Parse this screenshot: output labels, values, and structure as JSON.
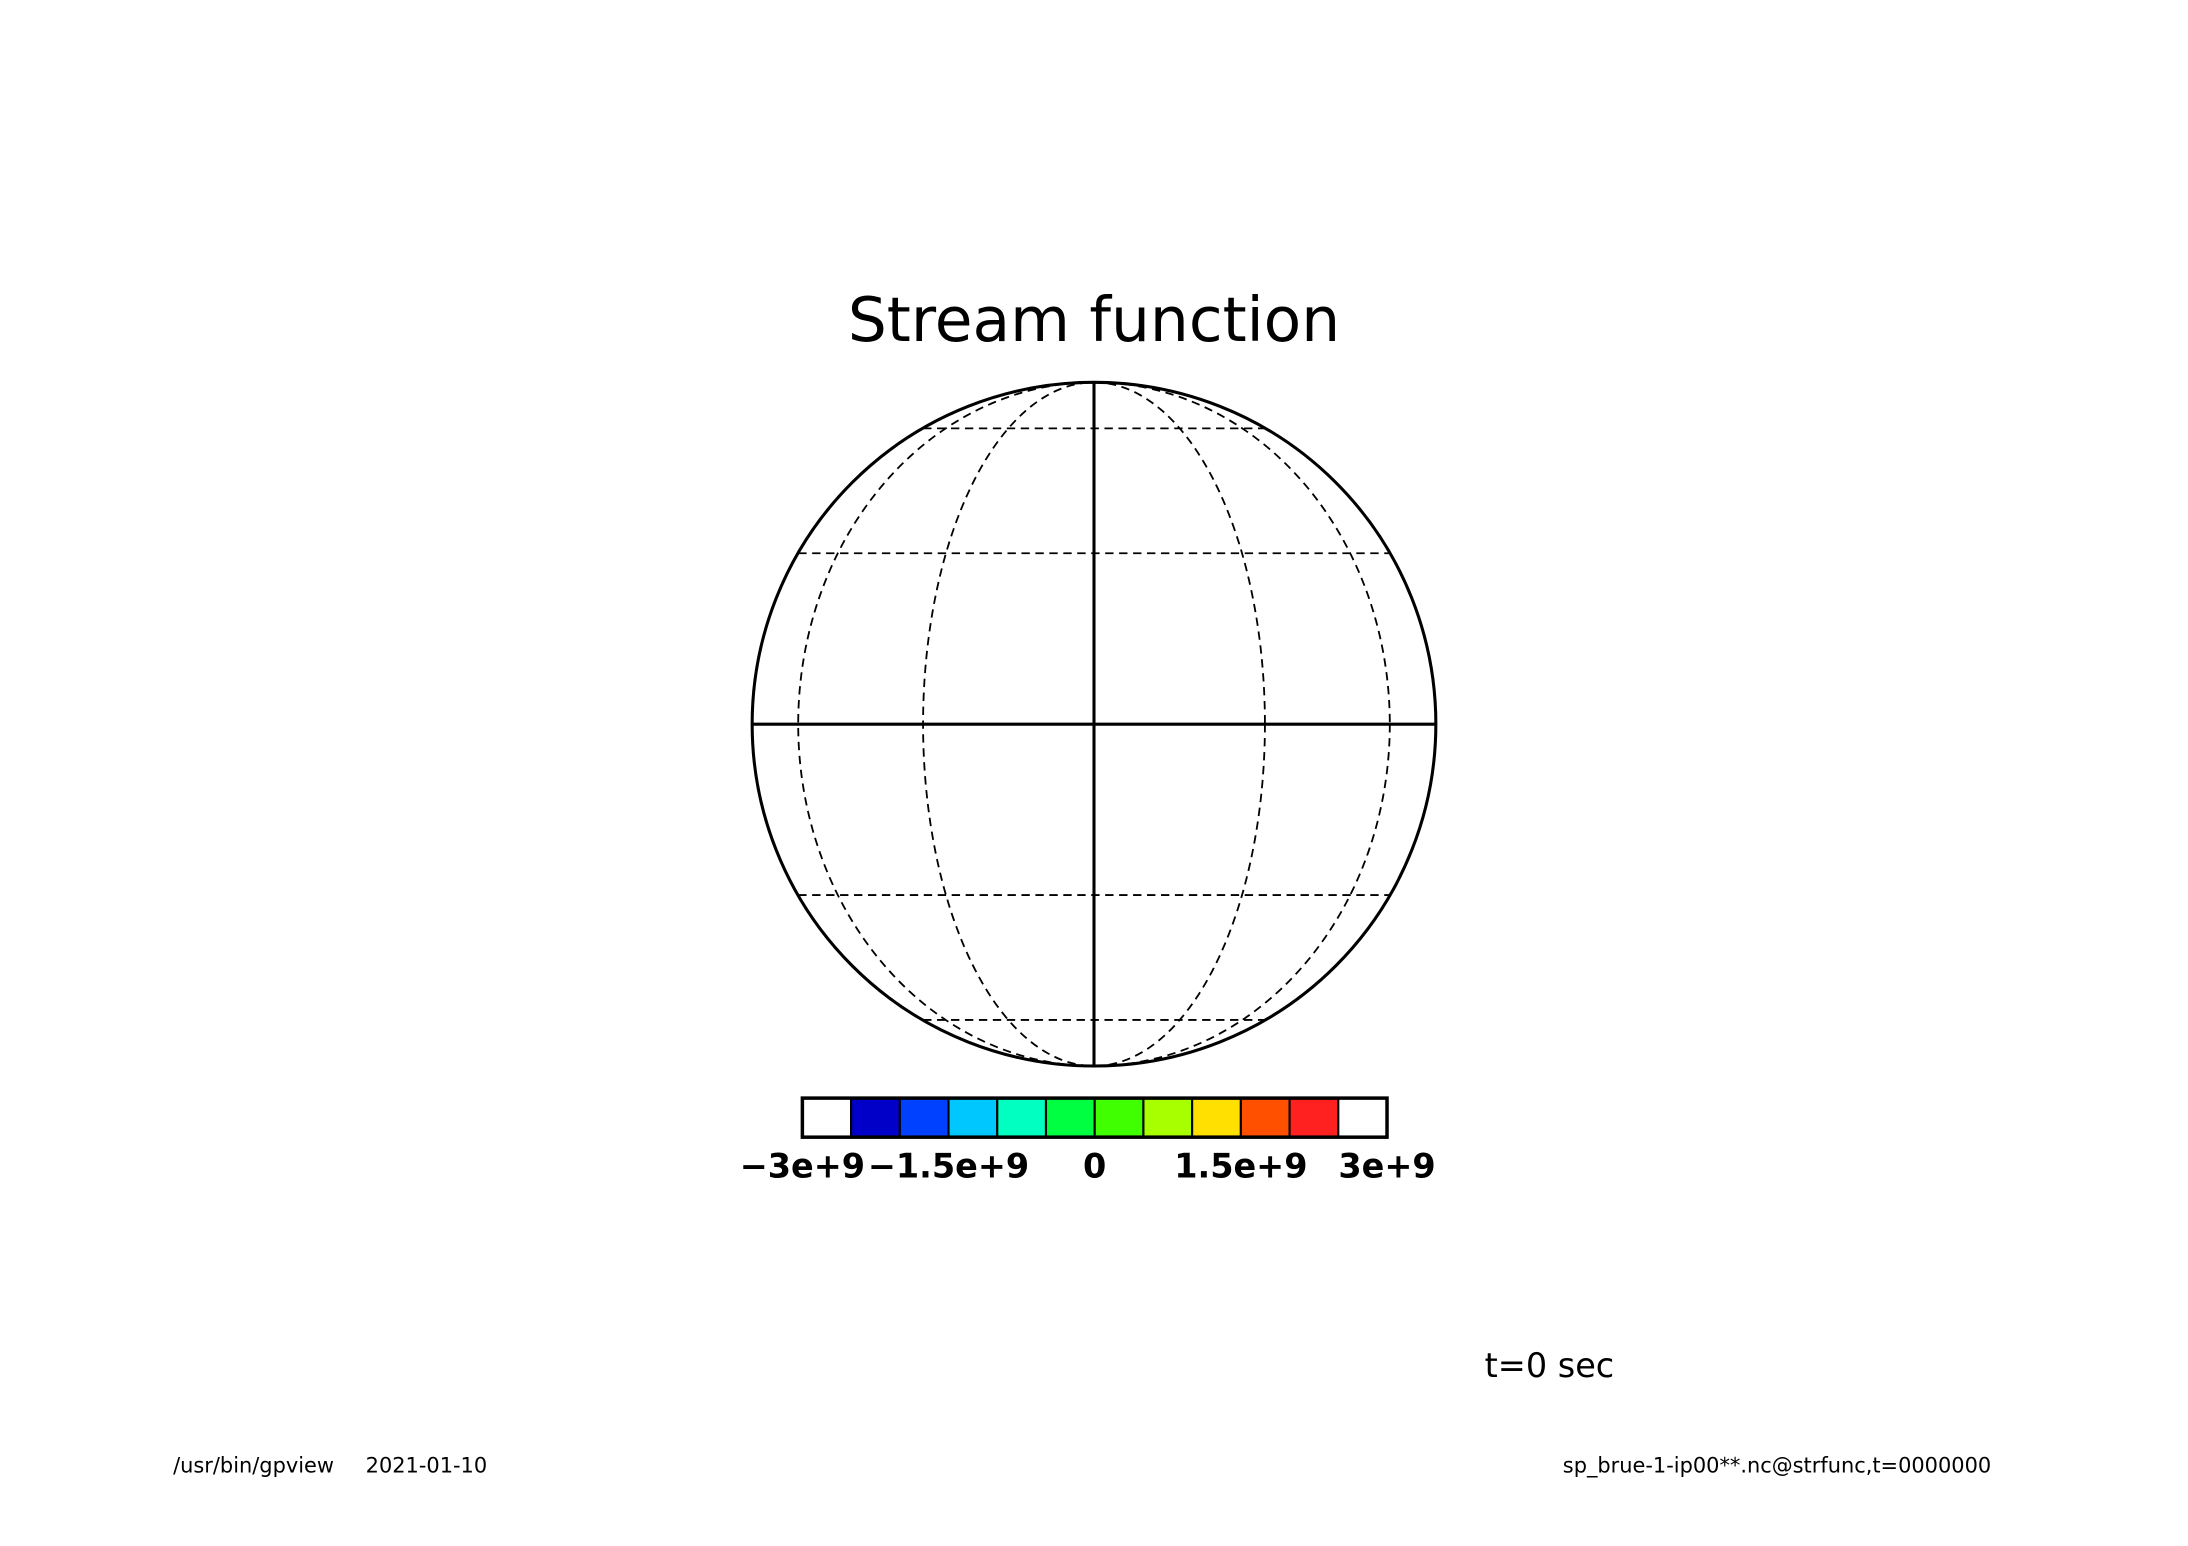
{
  "chart_data": {
    "type": "colorbar-map",
    "title": "Stream function",
    "annotation": "t=0 sec",
    "footer_left": [
      "/usr/bin/gpview",
      "2021-01-10"
    ],
    "footer_right": "sp_brue-1-ip00**.nc@strfunc,t=0000000",
    "colorbar": {
      "clim": [
        -3000000000,
        3000000000
      ],
      "colors": [
        "#ffffff",
        "#0000c8",
        "#0040ff",
        "#00c8ff",
        "#00ffc0",
        "#00ff40",
        "#40ff00",
        "#a8ff00",
        "#ffe000",
        "#ff5000",
        "#ff2020",
        "#ffffff"
      ],
      "ticks": [
        {
          "value": -3000000000,
          "label": "−3e+9"
        },
        {
          "value": -1500000000,
          "label": "−1.5e+9"
        },
        {
          "value": 0,
          "label": "0"
        },
        {
          "value": 1500000000,
          "label": "1.5e+9"
        },
        {
          "value": 3000000000,
          "label": "3e+9"
        }
      ]
    }
  }
}
